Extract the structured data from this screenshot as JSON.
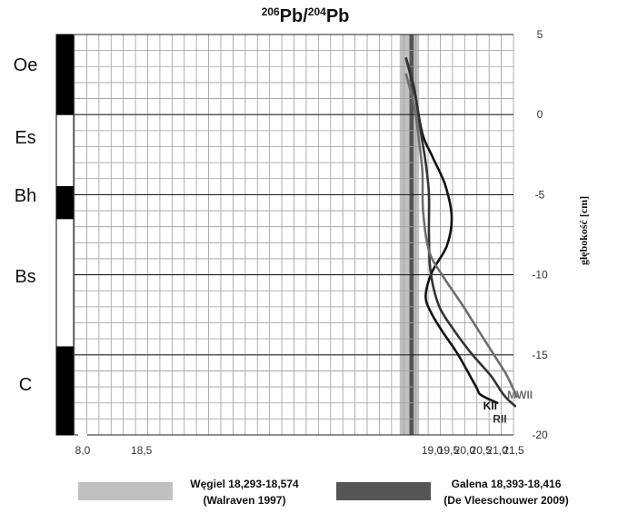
{
  "chart_data": {
    "type": "line",
    "title": {
      "base": "Pb/",
      "sup1": "206",
      "sup2": "204",
      "tail": "Pb"
    },
    "ylabel": "głębokość  [cm]",
    "xlim": [
      8.0,
      21.5
    ],
    "ylim": [
      -20,
      5
    ],
    "x_ticks": [
      "8,0",
      "18,5",
      "19,0",
      "19,5",
      "20,0",
      "20,5",
      "21,0",
      "21,5"
    ],
    "y_ticks": [
      "5",
      "0",
      "-5",
      "-10",
      "-15",
      "-20"
    ],
    "grid": true,
    "axis_break": "between 8,0 and 18,0",
    "horizons": [
      {
        "name": "Oe",
        "top": 5,
        "bottom": 0,
        "fill": "#000000"
      },
      {
        "name": "Es",
        "top": 0,
        "bottom": -4.5,
        "fill": "#ffffff"
      },
      {
        "name": "Bh",
        "top": -4.5,
        "bottom": -6.5,
        "fill": "#000000"
      },
      {
        "name": "Bs",
        "top": -6.5,
        "bottom": -14.5,
        "fill": "#ffffff"
      },
      {
        "name": "C",
        "top": -14.5,
        "bottom": -20,
        "fill": "#000000"
      }
    ],
    "bands": [
      {
        "name": "Węgiel 18,293-18,574",
        "source": "(Walraven 1997)",
        "x0": 18.0,
        "x1": 18.6,
        "color": "#c0c0c0"
      },
      {
        "name": "Galena 18,393-18,416",
        "source": "(De Vleeschouwer 2009)",
        "x0": 18.3,
        "x1": 18.43,
        "color": "#555555"
      }
    ],
    "series": [
      {
        "name": "KII",
        "color": "#111111",
        "points": [
          [
            18.2,
            3.5
          ],
          [
            18.45,
            1.5
          ],
          [
            18.7,
            -1.2
          ],
          [
            19.0,
            -2.6
          ],
          [
            19.4,
            -4.4
          ],
          [
            19.6,
            -6.4
          ],
          [
            19.45,
            -8.2
          ],
          [
            19.0,
            -9.8
          ],
          [
            18.8,
            -11.3
          ],
          [
            18.95,
            -12.3
          ],
          [
            19.3,
            -13.5
          ],
          [
            19.8,
            -15.0
          ],
          [
            20.35,
            -17.0
          ],
          [
            20.5,
            -17.5
          ],
          [
            21.0,
            -18.0
          ]
        ],
        "label_pos": [
          20.78,
          -18.2
        ]
      },
      {
        "name": "RII",
        "color": "#333333",
        "points": [
          [
            18.2,
            3.5
          ],
          [
            18.45,
            1.6
          ],
          [
            18.65,
            -1.1
          ],
          [
            18.8,
            -3.0
          ],
          [
            18.9,
            -5.0
          ],
          [
            18.9,
            -7.5
          ],
          [
            18.95,
            -9.8
          ],
          [
            19.2,
            -11.9
          ],
          [
            19.65,
            -13.4
          ],
          [
            20.2,
            -14.9
          ],
          [
            20.8,
            -16.3
          ],
          [
            21.2,
            -17.5
          ],
          [
            21.55,
            -18.2
          ]
        ],
        "label_pos": [
          21.08,
          -19.0
        ]
      },
      {
        "name": "MWII",
        "color": "#6e6e6e",
        "points": [
          [
            18.2,
            2.5
          ],
          [
            18.45,
            0.5
          ],
          [
            18.6,
            -1.7
          ],
          [
            18.7,
            -3.6
          ],
          [
            18.72,
            -6.0
          ],
          [
            18.9,
            -8.5
          ],
          [
            19.3,
            -10.0
          ],
          [
            19.9,
            -11.8
          ],
          [
            20.4,
            -13.4
          ],
          [
            20.9,
            -15.0
          ],
          [
            21.3,
            -16.3
          ],
          [
            21.6,
            -17.6
          ]
        ],
        "label_pos": [
          21.7,
          -17.5
        ]
      }
    ]
  },
  "legend": {
    "items": [
      {
        "line1": "Węgiel 18,293-18,574",
        "line2": "(Walraven 1997)",
        "color": "#c0c0c0"
      },
      {
        "line1": "Galena 18,393-18,416",
        "line2": "(De Vleeschouwer 2009)",
        "color": "#555555"
      }
    ]
  }
}
